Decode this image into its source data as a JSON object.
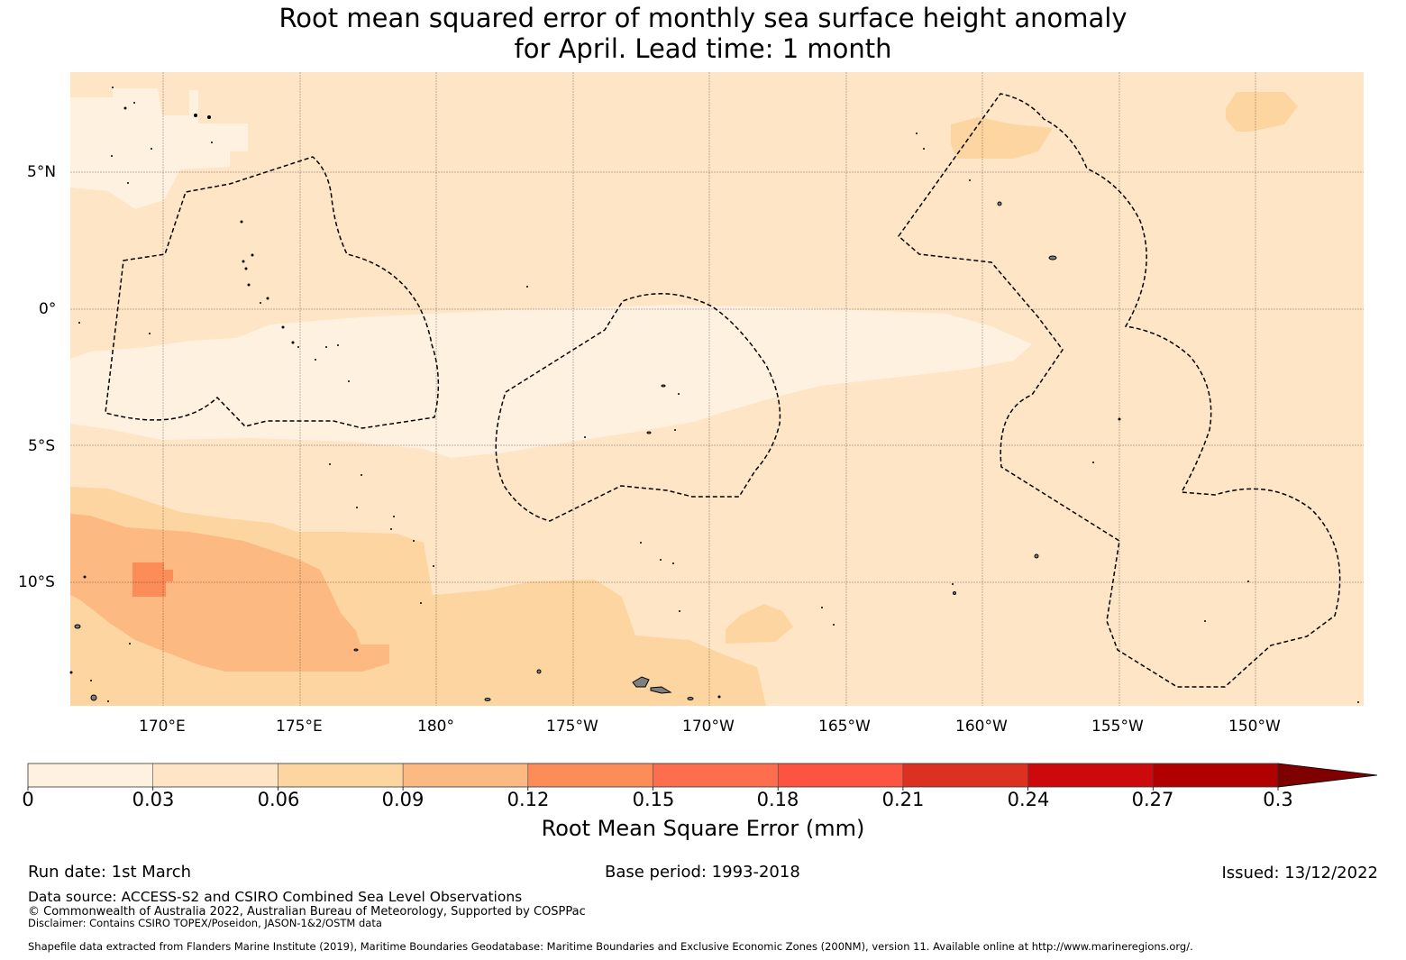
{
  "title": {
    "line1": "Root mean squared error of monthly sea surface height anomaly",
    "line2": "for April. Lead time: 1 month"
  },
  "map": {
    "longitude_labels": [
      "170°E",
      "175°E",
      "180°",
      "175°W",
      "170°W",
      "165°W",
      "160°W",
      "155°W",
      "150°W"
    ],
    "latitude_labels": [
      "5°N",
      "0°",
      "5°S",
      "10°S"
    ],
    "colors": {
      "class0": "#fff1e0",
      "class1": "#fee5c6",
      "class2": "#fdd5a0",
      "class3": "#fdb982",
      "class4": "#fc8d59",
      "boundary": "#000000",
      "land": "#7f7f7f"
    }
  },
  "colorbar": {
    "ticks": [
      "0",
      "0.03",
      "0.06",
      "0.09",
      "0.12",
      "0.15",
      "0.18",
      "0.21",
      "0.24",
      "0.27",
      "0.3"
    ],
    "colors": [
      "#fff1e0",
      "#fee5c6",
      "#fdd5a0",
      "#fdb982",
      "#fc8d59",
      "#fc6e4e",
      "#fc5440",
      "#dc3020",
      "#cc0a0e",
      "#b00000",
      "#7f0000"
    ],
    "label": "Root Mean Square Error (mm)"
  },
  "footer": {
    "run_date": "Run date: 1st March",
    "base_period": "Base period: 1993-2018",
    "issued": "Issued: 13/12/2022",
    "data_source": "Data source: ACCESS-S2 and CSIRO Combined Sea Level Observations",
    "copyright": "© Commonwealth of Australia 2022, Australian Bureau of Meteorology, Supported by COSPPac",
    "disclaimer": "Disclaimer: Contains CSIRO TOPEX/Poseidon, JASON-1&2/OSTM data",
    "shapefile": "Shapefile data extracted from Flanders Marine Institute (2019), Maritime Boundaries Geodatabase: Maritime Boundaries and Exclusive Economic Zones (200NM), version 11. Available online at http://www.marineregions.org/."
  }
}
